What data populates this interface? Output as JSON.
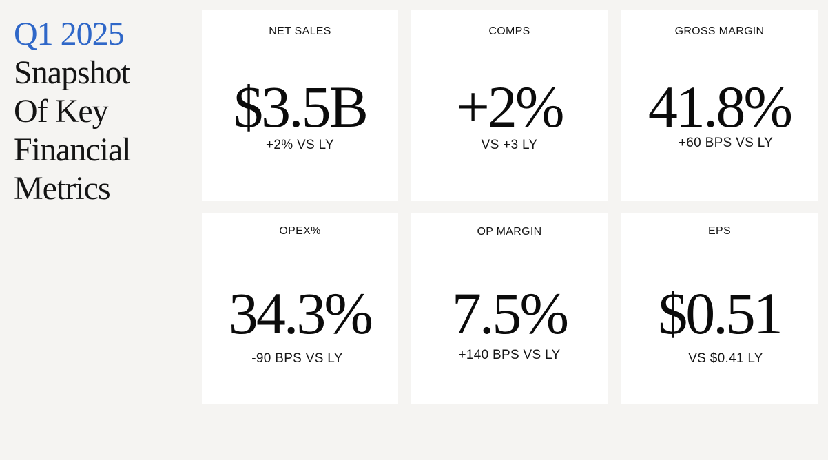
{
  "title": {
    "period": "Q1 2025",
    "lines": [
      "Snapshot",
      "Of Key",
      "Financial",
      "Metrics"
    ]
  },
  "metrics": [
    {
      "label": "NET SALES",
      "value": "$3.5B",
      "sub": "+2% VS LY"
    },
    {
      "label": "COMPS",
      "value": "+2%",
      "sub": "VS +3 LY"
    },
    {
      "label": "GROSS MARGIN",
      "value": "41.8%",
      "sub": "+60 BPS VS LY"
    },
    {
      "label": "OPEX%",
      "value": "34.3%",
      "sub": "-90 BPS VS LY"
    },
    {
      "label": "OP MARGIN",
      "value": "7.5%",
      "sub": "+140 BPS VS LY"
    },
    {
      "label": "EPS",
      "value": "$0.51",
      "sub": "VS $0.41 LY"
    }
  ],
  "colors": {
    "accent": "#2f67c8",
    "background": "#f5f4f2",
    "card": "#ffffff"
  }
}
